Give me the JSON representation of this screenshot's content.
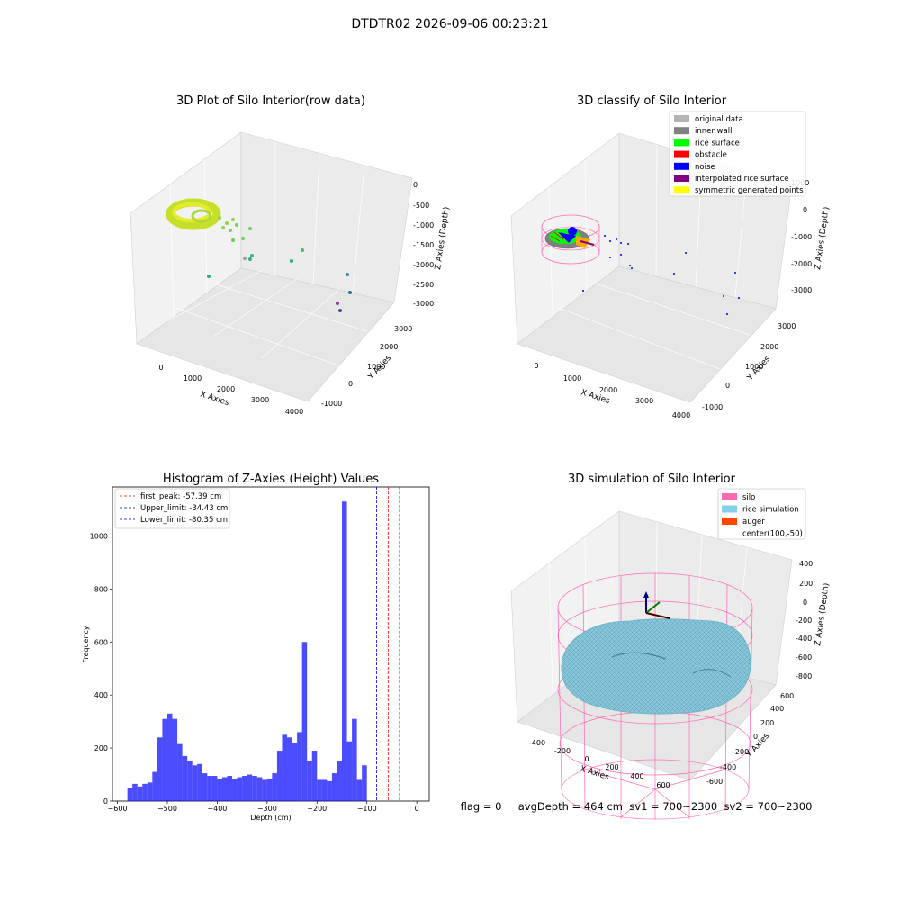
{
  "figure": {
    "suptitle": "DTDTR02 2026-09-06 00:23:21",
    "footer": "flag = 0     avgDepth = 464 cm  sv1 = 700~2300  sv2 = 700~2300"
  },
  "chart_data": [
    {
      "type": "scatter",
      "projection": "3d",
      "title": "3D Plot of Silo Interior(row data)",
      "xlabel": "X Axies",
      "ylabel": "Y Axies",
      "zlabel": "Z Axies (Depth)",
      "xticks": [
        "0",
        "1000",
        "2000",
        "3000",
        "4000"
      ],
      "yticks": [
        "-1000",
        "0",
        "1000",
        "2000",
        "3000"
      ],
      "zticks": [
        "0",
        "-500",
        "-1000",
        "-1500",
        "-2000",
        "-2500",
        "-3000"
      ],
      "colormap": "viridis",
      "description_points": [
        {
          "x": 400,
          "y": 2600,
          "z": -350
        },
        {
          "x": 700,
          "y": 2500,
          "z": -500
        },
        {
          "x": 1000,
          "y": 2200,
          "z": -700
        },
        {
          "x": 1200,
          "y": 2000,
          "z": -900
        },
        {
          "x": 500,
          "y": 1200,
          "z": -2200
        },
        {
          "x": 1400,
          "y": 1700,
          "z": -1700
        },
        {
          "x": 1500,
          "y": 1700,
          "z": -1500
        },
        {
          "x": 2300,
          "y": 1600,
          "z": -1600
        },
        {
          "x": 2900,
          "y": 1000,
          "z": -2200
        },
        {
          "x": 3200,
          "y": 500,
          "z": -2600
        },
        {
          "x": 3000,
          "y": 200,
          "z": -2800
        }
      ]
    },
    {
      "type": "scatter",
      "projection": "3d",
      "title": "3D classify of Silo Interior",
      "xlabel": "X Axies",
      "ylabel": "Y Axies",
      "zlabel": "Z Axies (Depth)",
      "xticks": [
        "0",
        "1000",
        "2000",
        "3000",
        "4000"
      ],
      "yticks": [
        "-1000",
        "0",
        "1000",
        "2000",
        "3000"
      ],
      "zticks": [
        "1000",
        "0",
        "-1000",
        "-2000",
        "-3000"
      ],
      "legend_position": "upper right",
      "legend": [
        {
          "label": "original data",
          "color": "#b3b3b3"
        },
        {
          "label": "inner wall",
          "color": "#808080"
        },
        {
          "label": "rice surface",
          "color": "#00ff00"
        },
        {
          "label": "obstacle",
          "color": "#ff0000"
        },
        {
          "label": "noise",
          "color": "#0000ff"
        },
        {
          "label": "interpolated rice surface",
          "color": "#800080"
        },
        {
          "label": "symmetric generated points",
          "color": "#ffff00"
        }
      ]
    },
    {
      "type": "bar",
      "title": "Histogram of Z-Axies (Height) Values",
      "xlabel": "Depth (cm)",
      "ylabel": "Frequency",
      "xlim": [
        -610,
        25
      ],
      "ylim": [
        0,
        1185
      ],
      "xticks": [
        -600,
        -500,
        -400,
        -300,
        -200,
        -100,
        0
      ],
      "yticks": [
        0,
        200,
        400,
        600,
        800,
        1000
      ],
      "bin_start": -580,
      "bin_width": 10,
      "bar_color": "#0000ff",
      "values": [
        50,
        65,
        55,
        65,
        70,
        110,
        240,
        310,
        330,
        310,
        215,
        170,
        150,
        135,
        140,
        105,
        95,
        95,
        85,
        90,
        95,
        85,
        90,
        95,
        100,
        95,
        90,
        80,
        85,
        105,
        190,
        250,
        240,
        220,
        260,
        600,
        150,
        190,
        80,
        80,
        75,
        105,
        150,
        1130,
        225,
        310,
        80,
        135
      ],
      "legend_position": "upper left",
      "reference_lines": [
        {
          "label": "first_peak: -57.39 cm",
          "x": -57.39,
          "color": "#ff0000"
        },
        {
          "label": "Upper_limit: -34.43 cm",
          "x": -34.43,
          "color": "#0000ff"
        },
        {
          "label": "Lower_limit: -80.35 cm",
          "x": -80.35,
          "color": "#0000ff"
        }
      ]
    },
    {
      "type": "surface",
      "projection": "3d",
      "title": "3D simulation of Silo Interior",
      "xlabel": "X Axies",
      "ylabel": "Y Axies",
      "zlabel": "Z Axies (Depth)",
      "xticks": [
        "-400",
        "-200",
        "0",
        "200",
        "400",
        "600"
      ],
      "yticks": [
        "-600",
        "-400",
        "-200",
        "0",
        "200",
        "400",
        "600"
      ],
      "zticks": [
        "400",
        "200",
        "0",
        "-200",
        "-400",
        "-600",
        "-800"
      ],
      "legend_position": "upper right",
      "legend": [
        {
          "label": "silo",
          "color": "#ff69b4"
        },
        {
          "label": "rice simulation",
          "color": "#87ceeb"
        },
        {
          "label": "auger",
          "color": "#ff4500"
        },
        {
          "label": "center(100,-50)",
          "color": ""
        }
      ]
    }
  ]
}
